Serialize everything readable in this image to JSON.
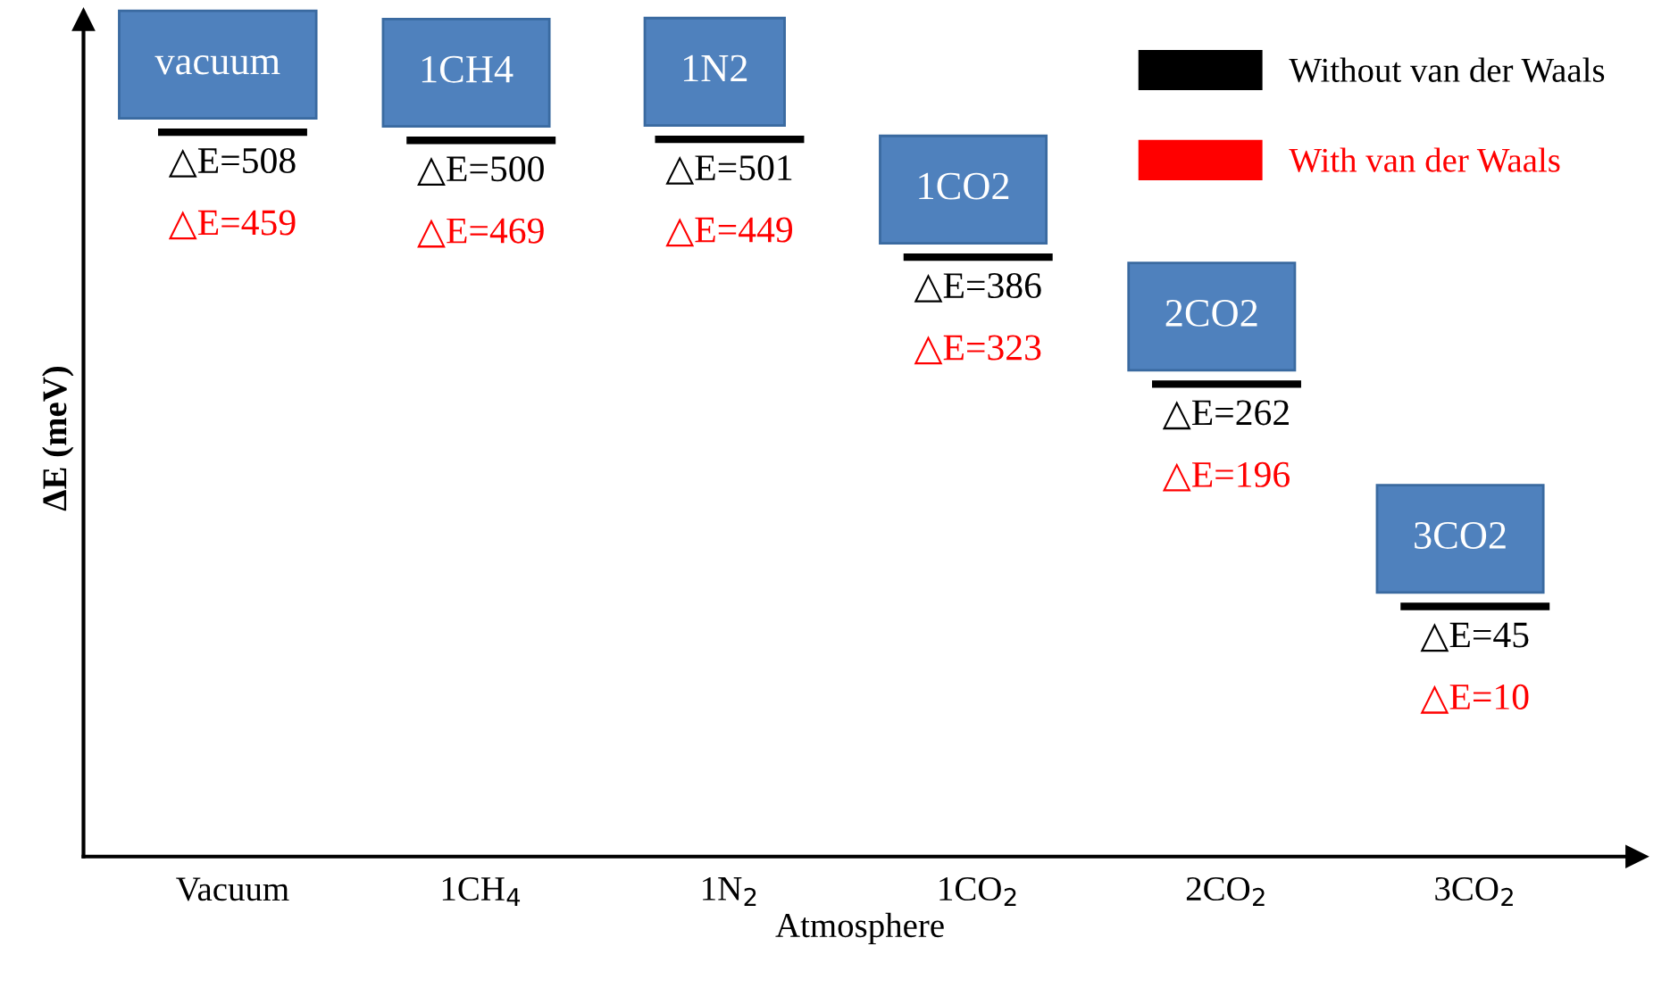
{
  "chart_data": {
    "type": "other",
    "xlabel": "Atmosphere",
    "ylabel": "ΔE (meV)",
    "categories": [
      "Vacuum",
      "1CH$_{4}$",
      "1N$_{2}$",
      "1CO$_{2}$",
      "2CO$_{2}$",
      "3CO$_{2}$"
    ],
    "series": [
      {
        "name": "Without van der Waals",
        "color": "#000000",
        "values": [
          508,
          500,
          501,
          386,
          262,
          45
        ],
        "value_labels": [
          "△E=508",
          "△E=500",
          "△E=501",
          "△E=386",
          "△E=262",
          "△E=45"
        ]
      },
      {
        "name": "With van der Waals",
        "color": "#ff0000",
        "values": [
          459,
          469,
          449,
          323,
          196,
          10
        ],
        "value_labels": [
          "△E=459",
          "△E=469",
          "△E=449",
          "△E=323",
          "△E=196",
          "△E=10"
        ]
      }
    ],
    "annotations": [
      {
        "text": "vacuum",
        "x": "Vacuum"
      },
      {
        "text": "1CH4",
        "x": "1CH$_{4}$"
      },
      {
        "text": "1N2",
        "x": "1N$_{2}$"
      },
      {
        "text": "1CO2",
        "x": "1CO$_{2}$"
      },
      {
        "text": "2CO2",
        "x": "2CO$_{2}$"
      },
      {
        "text": "3CO2",
        "x": "3CO$_{2}$"
      }
    ],
    "legend": "top right"
  }
}
